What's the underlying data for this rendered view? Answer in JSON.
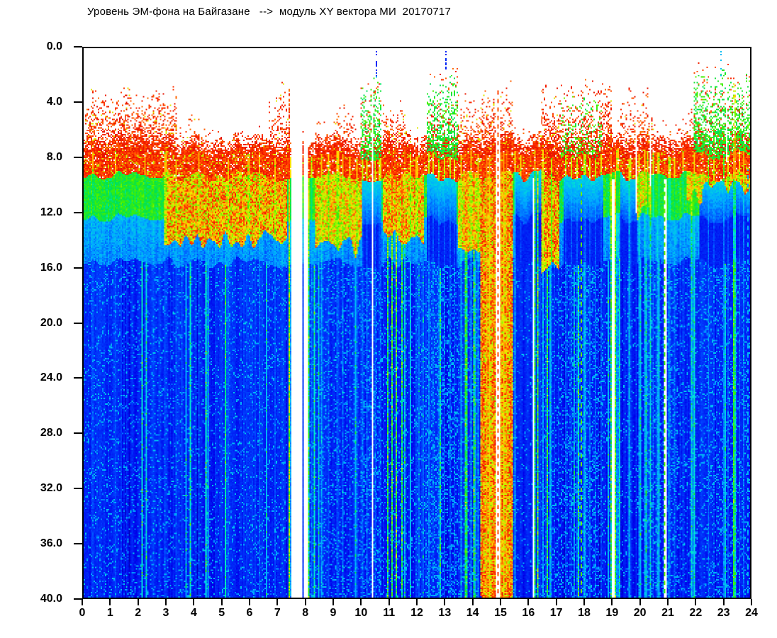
{
  "chart_data": {
    "type": "heatmap",
    "title": "Уровень ЭМ-фона на Байгазане   -->  модуль XY вектора МИ  20170717",
    "station": "Байгазан",
    "date_label": "20170717",
    "colormap": "jet",
    "background": "#ffffff",
    "axis_color": "#000000",
    "no_data_color": "#ffffff",
    "x_axis": {
      "min": 0,
      "max": 24,
      "tick_step": 1,
      "ticks": [
        "0",
        "1",
        "2",
        "3",
        "4",
        "5",
        "6",
        "7",
        "8",
        "9",
        "10",
        "11",
        "12",
        "13",
        "14",
        "15",
        "16",
        "17",
        "18",
        "19",
        "20",
        "21",
        "22",
        "23",
        "24"
      ]
    },
    "y_axis": {
      "min": 0.0,
      "max": 40.0,
      "tick_step": 4.0,
      "direction": "down",
      "ticks": [
        "0.0",
        "4.0",
        "8.0",
        "12.0",
        "16.0",
        "20.0",
        "24.0",
        "28.0",
        "32.0",
        "36.0",
        "40.0"
      ]
    },
    "model": {
      "surface_band": {
        "top_depth": 7.75,
        "thickness": 1.55,
        "level": "red"
      },
      "layers": [
        {
          "d0": 9.3,
          "d1": 12.4,
          "level": "green"
        },
        {
          "d0": 12.4,
          "d1": 15.6,
          "level": "cyan"
        },
        {
          "d0": 15.6,
          "d1": 40.0,
          "level": "blue"
        }
      ],
      "clouds": [
        [
          0.05,
          3.35,
          2.6,
          "red",
          0.75
        ],
        [
          3.4,
          4.3,
          4.5,
          "red",
          0.3
        ],
        [
          4.3,
          6.6,
          6.0,
          "red",
          0.15
        ],
        [
          6.65,
          7.38,
          2.7,
          "red",
          0.55
        ],
        [
          8.35,
          9.0,
          5.2,
          "red",
          0.3
        ],
        [
          9.0,
          9.8,
          4.0,
          "red",
          0.5
        ],
        [
          9.95,
          10.75,
          1.6,
          "green",
          0.85
        ],
        [
          10.8,
          11.6,
          3.2,
          "red",
          0.65
        ],
        [
          11.6,
          12.3,
          5.0,
          "red",
          0.3
        ],
        [
          12.35,
          13.45,
          1.3,
          "green",
          0.9
        ],
        [
          13.5,
          14.3,
          2.8,
          "red",
          0.55
        ],
        [
          14.3,
          15.45,
          2.2,
          "red",
          0.7
        ],
        [
          15.5,
          16.45,
          5.8,
          "red",
          0.3
        ],
        [
          16.5,
          19.0,
          2.2,
          "mixed",
          0.75
        ],
        [
          19.3,
          19.95,
          2.8,
          "red",
          0.45
        ],
        [
          19.95,
          20.5,
          2.9,
          "red",
          0.5
        ],
        [
          20.5,
          21.7,
          5.0,
          "red",
          0.25
        ],
        [
          21.7,
          21.95,
          4.5,
          "red",
          0.35
        ],
        [
          21.95,
          24.0,
          1.2,
          "green",
          0.9
        ]
      ],
      "mottle": [
        [
          2.9,
          7.3,
          14,
          0.75
        ],
        [
          8.35,
          10.0,
          14.5,
          0.65
        ],
        [
          10.8,
          12.25,
          13.5,
          0.7
        ],
        [
          13.5,
          14.3,
          15,
          0.65
        ],
        [
          14.3,
          15.45,
          40,
          0.8
        ],
        [
          16.5,
          17.15,
          16,
          0.75
        ],
        [
          19.95,
          20.45,
          12,
          0.6
        ],
        [
          21.7,
          22.25,
          11,
          0.6
        ],
        [
          22.25,
          24.0,
          10.3,
          0.7
        ]
      ],
      "blue_cores": [
        [
          10.0,
          10.75
        ],
        [
          12.35,
          13.4
        ],
        [
          15.5,
          16.45
        ],
        [
          17.3,
          18.7
        ],
        [
          19.3,
          19.95
        ],
        [
          22.15,
          24.0
        ]
      ],
      "fuzz": [
        [
          0,
          7.3,
          0.22
        ],
        [
          8.1,
          9.95,
          0.3
        ],
        [
          9.95,
          10.75,
          0.45
        ],
        [
          10.75,
          12.3,
          0.25
        ],
        [
          12.3,
          13.5,
          0.5
        ],
        [
          13.5,
          15.5,
          0.3
        ],
        [
          15.5,
          16.5,
          0.12
        ],
        [
          16.5,
          17.2,
          0.3
        ],
        [
          17.2,
          18.7,
          0.45
        ],
        [
          18.7,
          19.3,
          0.2
        ],
        [
          19.3,
          20.2,
          0.15
        ],
        [
          20.2,
          21.4,
          0.4
        ],
        [
          21.4,
          22.3,
          0.25
        ],
        [
          22.3,
          23.4,
          0.35
        ],
        [
          23.4,
          24,
          0.28
        ]
      ],
      "gaps": [
        [
          7.5,
          7.86,
          0,
          40
        ],
        [
          7.94,
          8.1,
          0,
          40
        ],
        [
          10.36,
          10.41,
          1.8,
          40
        ],
        [
          13.45,
          13.49,
          9.4,
          40
        ],
        [
          14.84,
          15.0,
          2.6,
          40
        ],
        [
          16.16,
          16.2,
          9.4,
          40
        ],
        [
          19.03,
          19.1,
          9.5,
          40
        ],
        [
          19.88,
          19.93,
          2.5,
          12
        ],
        [
          20.4,
          20.45,
          3,
          10
        ],
        [
          20.88,
          21.0,
          9.5,
          40
        ],
        [
          23.13,
          23.17,
          1.2,
          8.3
        ]
      ],
      "dashes": [
        [
          14.9,
          "r",
          2.8
        ],
        [
          17.9,
          "yg",
          8.6
        ],
        [
          20.94,
          "yg",
          9.5
        ],
        [
          23.92,
          "c",
          8.8
        ]
      ],
      "streaks": [
        [
          0.35,
          "c",
          0.3
        ],
        [
          1.15,
          "c",
          0.3
        ],
        [
          2.2,
          "c",
          0.25
        ],
        [
          2.95,
          "c",
          0.3
        ],
        [
          3.35,
          "c",
          0.3
        ],
        [
          4.15,
          "c",
          0.25
        ],
        [
          5.2,
          "c",
          0.3
        ],
        [
          5.95,
          "c",
          0.25
        ],
        [
          6.35,
          "c",
          0.3
        ],
        [
          6.9,
          "c",
          0.3
        ],
        [
          7.42,
          "r",
          0.8,
          3
        ],
        [
          7.47,
          "g",
          0.55
        ],
        [
          8.13,
          "r",
          0.6
        ],
        [
          8.22,
          "c",
          0.5
        ],
        [
          8.55,
          "g",
          0.45
        ],
        [
          8.8,
          "c",
          0.35
        ],
        [
          9.15,
          "c",
          0.35
        ],
        [
          9.35,
          "g",
          0.4
        ],
        [
          9.6,
          "c",
          0.35
        ],
        [
          9.85,
          "c",
          0.3
        ],
        [
          10.05,
          "c",
          0.5
        ],
        [
          10.2,
          "c",
          0.45
        ],
        [
          10.5,
          "c",
          0.5
        ],
        [
          10.68,
          "c",
          0.45
        ],
        [
          10.95,
          "r",
          0.6
        ],
        [
          11.1,
          "r",
          0.65
        ],
        [
          11.28,
          "r",
          0.7
        ],
        [
          11.45,
          "r",
          0.6
        ],
        [
          11.58,
          "o",
          0.5
        ],
        [
          11.75,
          "c",
          0.35
        ],
        [
          12.0,
          "c",
          0.3
        ],
        [
          12.45,
          "c",
          0.5
        ],
        [
          12.6,
          "c",
          0.45
        ],
        [
          12.8,
          "c",
          0.5
        ],
        [
          13.0,
          "c",
          0.45
        ],
        [
          13.2,
          "c",
          0.5
        ],
        [
          13.35,
          "c",
          0.4
        ],
        [
          13.6,
          "g",
          0.5
        ],
        [
          13.78,
          "r",
          0.6
        ],
        [
          13.95,
          "g",
          0.45
        ],
        [
          14.08,
          "r",
          0.6
        ],
        [
          14.2,
          "g",
          0.4
        ],
        [
          14.35,
          "r",
          0.75
        ],
        [
          14.5,
          "o",
          0.8
        ],
        [
          14.62,
          "y",
          0.75
        ],
        [
          14.75,
          "r",
          0.8
        ],
        [
          15.03,
          "o",
          0.8
        ],
        [
          15.12,
          "y",
          0.7
        ],
        [
          15.25,
          "o",
          0.7
        ],
        [
          15.38,
          "r",
          0.7
        ],
        [
          15.55,
          "g",
          0.55
        ],
        [
          15.72,
          "c",
          0.35
        ],
        [
          16.25,
          "y",
          0.75
        ],
        [
          16.33,
          "r",
          0.7
        ],
        [
          16.55,
          "g",
          0.55
        ],
        [
          16.7,
          "r",
          0.6
        ],
        [
          16.85,
          "c",
          0.5
        ],
        [
          17.35,
          "c",
          0.45
        ],
        [
          17.55,
          "c",
          0.5
        ],
        [
          17.75,
          "c",
          0.45
        ],
        [
          18.05,
          "c",
          0.5
        ],
        [
          18.25,
          "c",
          0.45
        ],
        [
          18.45,
          "c",
          0.5
        ],
        [
          18.62,
          "c",
          0.4
        ],
        [
          18.98,
          "o",
          0.8
        ],
        [
          19.14,
          "r",
          0.7
        ],
        [
          19.22,
          "g",
          0.5
        ],
        [
          19.63,
          "g",
          0.6
        ],
        [
          19.72,
          "c",
          0.45
        ],
        [
          20.0,
          "g",
          0.5
        ],
        [
          20.23,
          "g",
          0.55
        ],
        [
          20.43,
          "y",
          0.5
        ],
        [
          20.68,
          "g",
          0.45
        ],
        [
          20.3,
          "c",
          0.45
        ],
        [
          20.5,
          "c",
          0.5
        ],
        [
          20.72,
          "c",
          0.45
        ],
        [
          21.1,
          "c",
          0.45
        ],
        [
          21.3,
          "c",
          0.4
        ],
        [
          21.6,
          "c",
          0.35
        ],
        [
          21.9,
          "r",
          0.45
        ],
        [
          22.0,
          "g",
          0.5
        ],
        [
          22.5,
          "c",
          0.65
        ],
        [
          22.7,
          "c",
          0.4
        ],
        [
          23.05,
          "c",
          0.7
        ],
        [
          23.2,
          "c",
          0.4
        ],
        [
          23.44,
          "y",
          0.6,
          2.6
        ],
        [
          23.6,
          "c",
          0.35
        ],
        [
          23.75,
          "g",
          0.4
        ],
        [
          10.55,
          "b",
          0.55,
          0.2,
          2.2
        ],
        [
          13.02,
          "b",
          0.5,
          0.2,
          1.6
        ],
        [
          22.95,
          "c",
          0.5,
          0.2,
          2.0
        ]
      ]
    }
  }
}
